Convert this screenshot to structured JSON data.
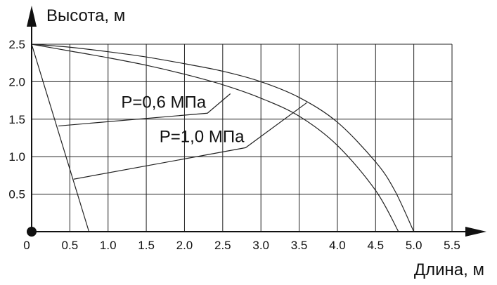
{
  "chart_data": {
    "type": "line",
    "title": "",
    "xlabel": "Длина, м",
    "ylabel": "Высота, м",
    "xlim": [
      0,
      5.5
    ],
    "ylim": [
      0,
      2.5
    ],
    "grid": true,
    "x_ticks": [
      "0.5",
      "1.0",
      "1.5",
      "2.0",
      "2.5",
      "3.0",
      "3.5",
      "4.0",
      "4.5",
      "5.0",
      "5.5"
    ],
    "y_ticks": [
      "0.5",
      "1.0",
      "1.5",
      "2.0",
      "2.5"
    ],
    "origin_label": "0",
    "series": [
      {
        "name": "P=0,6 МПа",
        "points": [
          [
            0.0,
            2.5
          ],
          [
            0.5,
            2.41
          ],
          [
            1.0,
            2.32
          ],
          [
            1.5,
            2.22
          ],
          [
            2.0,
            2.1
          ],
          [
            2.5,
            1.96
          ],
          [
            3.0,
            1.78
          ],
          [
            3.5,
            1.54
          ],
          [
            4.0,
            1.15
          ],
          [
            4.5,
            0.55
          ],
          [
            4.8,
            0.0
          ]
        ]
      },
      {
        "name": "P=1,0 МПа",
        "points": [
          [
            0.0,
            2.5
          ],
          [
            0.5,
            2.46
          ],
          [
            1.0,
            2.4
          ],
          [
            1.5,
            2.33
          ],
          [
            2.0,
            2.24
          ],
          [
            2.5,
            2.14
          ],
          [
            3.0,
            2.0
          ],
          [
            3.5,
            1.79
          ],
          [
            4.0,
            1.46
          ],
          [
            4.5,
            0.93
          ],
          [
            4.75,
            0.55
          ],
          [
            5.0,
            0.0
          ]
        ]
      },
      {
        "name": "",
        "points": [
          [
            0.0,
            2.5
          ],
          [
            0.75,
            0.0
          ]
        ]
      }
    ],
    "annotations": [
      {
        "text": "P=0,6 МПа",
        "attach": [
          2.6,
          1.84
        ],
        "bend": [
          2.3,
          1.58
        ],
        "end": [
          0.35,
          1.41
        ]
      },
      {
        "text": "P=1,0 МПа",
        "attach": [
          3.6,
          1.72
        ],
        "bend": [
          2.8,
          1.12
        ],
        "end": [
          0.55,
          0.7
        ]
      }
    ]
  }
}
